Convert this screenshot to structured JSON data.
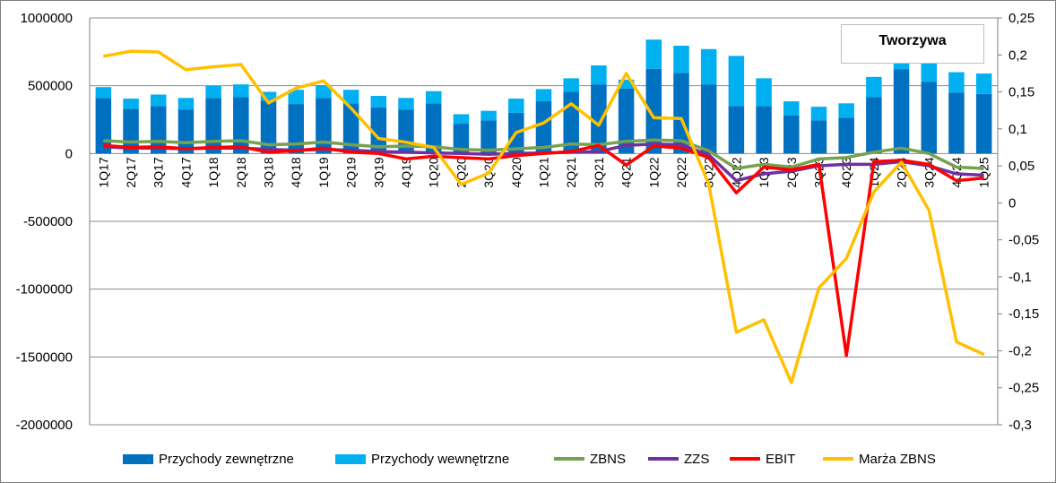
{
  "chart_data": {
    "type": "bar",
    "title": "Tworzywa",
    "categories": [
      "1Q17",
      "2Q17",
      "3Q17",
      "4Q17",
      "1Q18",
      "2Q18",
      "3Q18",
      "4Q18",
      "1Q19",
      "2Q19",
      "3Q19",
      "4Q19",
      "1Q20",
      "2Q20",
      "3Q20",
      "4Q20",
      "1Q21",
      "2Q21",
      "3Q21",
      "4Q21",
      "1Q22",
      "2Q22",
      "3Q22",
      "4Q22",
      "1Q23",
      "2Q23",
      "3Q23",
      "4Q23",
      "1Q24",
      "2Q24",
      "3Q24",
      "4Q24",
      "1Q25"
    ],
    "left_axis": {
      "ylim": [
        -2000000,
        1000000
      ],
      "ticks": [
        "1000000",
        "500000",
        "0",
        "-500000",
        "-1000000",
        "-1500000",
        "-2000000"
      ],
      "tick_values": [
        1000000,
        500000,
        0,
        -500000,
        -1000000,
        -1500000,
        -2000000
      ]
    },
    "right_axis": {
      "ylim": [
        -0.3,
        0.25
      ],
      "ticks": [
        "0,25",
        "0,2",
        "0,15",
        "0,1",
        "0,05",
        "0",
        "-0,05",
        "-0,1",
        "-0,15",
        "-0,2",
        "-0,25",
        "-0,3"
      ],
      "tick_values": [
        0.25,
        0.2,
        0.15,
        0.1,
        0.05,
        0,
        -0.05,
        -0.1,
        -0.15,
        -0.2,
        -0.25,
        -0.3
      ]
    },
    "grid": true,
    "legend_position": "bottom",
    "series": [
      {
        "name": "Przychody zewnętrzne",
        "kind": "bar-stacked",
        "axis": "left",
        "color": "#0070C0",
        "values": [
          410000,
          330000,
          350000,
          325000,
          410000,
          415000,
          390000,
          365000,
          410000,
          370000,
          340000,
          325000,
          370000,
          220000,
          245000,
          300000,
          385000,
          455000,
          510000,
          480000,
          625000,
          595000,
          510000,
          350000,
          350000,
          280000,
          245000,
          265000,
          415000,
          620000,
          530000,
          450000,
          440000
        ]
      },
      {
        "name": "Przychody wewnętrzne",
        "kind": "bar-stacked",
        "axis": "left",
        "color": "#00B0F0",
        "values": [
          80000,
          75000,
          85000,
          85000,
          90000,
          95000,
          65000,
          105000,
          95000,
          100000,
          85000,
          85000,
          90000,
          70000,
          70000,
          105000,
          90000,
          100000,
          140000,
          65000,
          215000,
          200000,
          260000,
          370000,
          205000,
          105000,
          100000,
          105000,
          150000,
          140000,
          170000,
          150000,
          150000
        ]
      },
      {
        "name": "ZBNS",
        "kind": "line",
        "axis": "left",
        "color": "#77A150",
        "values": [
          95000,
          85000,
          90000,
          80000,
          90000,
          95000,
          65000,
          70000,
          85000,
          65000,
          50000,
          55000,
          50000,
          30000,
          25000,
          35000,
          45000,
          70000,
          65000,
          90000,
          100000,
          95000,
          20000,
          -110000,
          -80000,
          -100000,
          -40000,
          -30000,
          10000,
          40000,
          0,
          -100000,
          -110000
        ]
      },
      {
        "name": "ZZS",
        "kind": "line",
        "axis": "left",
        "color": "#7030A0",
        "values": [
          50000,
          40000,
          40000,
          35000,
          40000,
          40000,
          30000,
          25000,
          30000,
          25000,
          15000,
          10000,
          5000,
          0,
          -5000,
          0,
          5000,
          10000,
          15000,
          60000,
          70000,
          65000,
          -10000,
          -200000,
          -150000,
          -130000,
          -90000,
          -80000,
          -80000,
          -60000,
          -90000,
          -150000,
          -160000
        ]
      },
      {
        "name": "EBIT",
        "kind": "line",
        "axis": "left",
        "color": "#FF0000",
        "values": [
          60000,
          45000,
          50000,
          35000,
          45000,
          50000,
          10000,
          20000,
          40000,
          10000,
          0,
          -40000,
          -20000,
          -30000,
          -40000,
          -15000,
          0,
          15000,
          60000,
          -85000,
          55000,
          40000,
          -30000,
          -290000,
          -100000,
          -120000,
          -80000,
          -1490000,
          -60000,
          -50000,
          -80000,
          -200000,
          -180000
        ]
      },
      {
        "name": "Marża ZBNS",
        "kind": "line",
        "axis": "right",
        "color": "#FFC000",
        "values": [
          0.198,
          0.205,
          0.204,
          0.18,
          0.184,
          0.187,
          0.135,
          0.155,
          0.165,
          0.128,
          0.087,
          0.082,
          0.075,
          0.025,
          0.04,
          0.095,
          0.108,
          0.134,
          0.105,
          0.175,
          0.115,
          0.114,
          0.025,
          -0.175,
          -0.158,
          -0.243,
          -0.115,
          -0.075,
          0.015,
          0.055,
          -0.01,
          -0.188,
          -0.205
        ]
      }
    ]
  }
}
